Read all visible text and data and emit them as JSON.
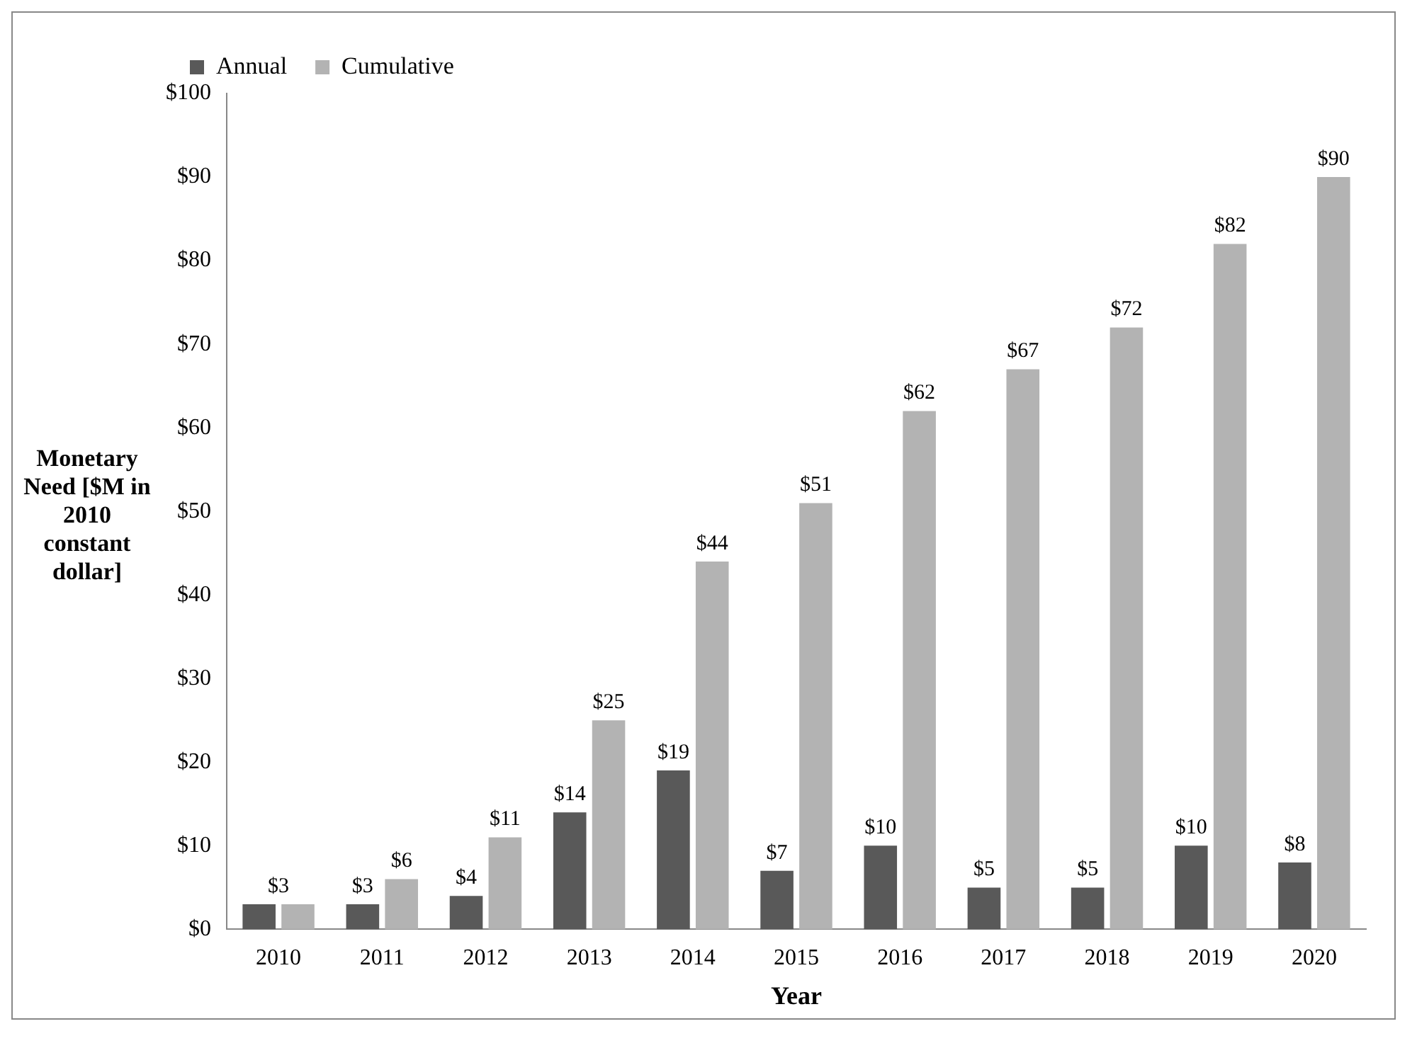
{
  "chart_data": {
    "type": "bar",
    "xlabel": "Year",
    "ylabel": "Monetary Need [$M in 2010 constant dollar]",
    "categories": [
      "2010",
      "2011",
      "2012",
      "2013",
      "2014",
      "2015",
      "2016",
      "2017",
      "2018",
      "2019",
      "2020"
    ],
    "series": [
      {
        "name": "Annual",
        "color": "#595959",
        "values": [
          3,
          3,
          4,
          14,
          19,
          7,
          10,
          5,
          5,
          10,
          8
        ],
        "value_labels": [
          null,
          "$3",
          "$4",
          "$14",
          "$19",
          "$7",
          "$10",
          "$5",
          "$5",
          "$10",
          "$8"
        ]
      },
      {
        "name": "Cumulative",
        "color": "#b3b3b3",
        "values": [
          3,
          6,
          11,
          25,
          44,
          51,
          62,
          67,
          72,
          82,
          90
        ],
        "value_labels": [
          "$3",
          "$6",
          "$11",
          "$25",
          "$44",
          "$51",
          "$62",
          "$67",
          "$72",
          "$82",
          "$90"
        ]
      }
    ],
    "ylim": [
      0,
      100
    ],
    "yticks": [
      {
        "value": 0,
        "label": "$0"
      },
      {
        "value": 10,
        "label": "$10"
      },
      {
        "value": 20,
        "label": "$20"
      },
      {
        "value": 30,
        "label": "$30"
      },
      {
        "value": 40,
        "label": "$40"
      },
      {
        "value": 50,
        "label": "$50"
      },
      {
        "value": 60,
        "label": "$60"
      },
      {
        "value": 70,
        "label": "$70"
      },
      {
        "value": 80,
        "label": "$80"
      },
      {
        "value": 90,
        "label": "$90"
      },
      {
        "value": 100,
        "label": "$100"
      }
    ],
    "grid": false,
    "legend": "top left"
  }
}
